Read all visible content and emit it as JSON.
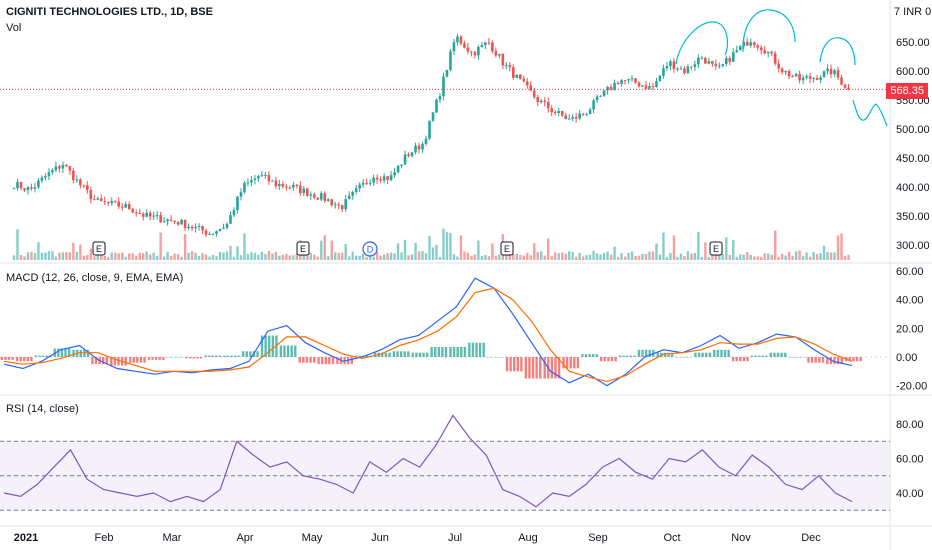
{
  "header": {
    "title": "CIGNITI TECHNOLOGIES LTD., 1D, BSE",
    "volume_label": "Vol",
    "currency_label": "7 INR 0",
    "last_price": "568.35"
  },
  "panels": {
    "macd_label": "MACD (12, 26, close, 9, EMA, EMA)",
    "rsi_label": "RSI (14, close)"
  },
  "colors": {
    "up": "#26a69a",
    "down": "#ef5350",
    "macd_line": "#2962ff",
    "signal_line": "#ff6d00",
    "rsi_line": "#7e57c2",
    "rsi_band": "#ede7f6",
    "annotation": "#00bcd4"
  },
  "chart_data": [
    {
      "type": "candlestick",
      "title": "CIGNITI TECHNOLOGIES LTD., 1D, BSE",
      "x_ticks": [
        "2021",
        "Feb",
        "Mar",
        "Apr",
        "May",
        "Jun",
        "Jul",
        "Aug",
        "Sep",
        "Oct",
        "Nov",
        "Dec"
      ],
      "y_ticks": [
        300,
        350,
        400,
        450,
        500,
        550,
        600,
        650
      ],
      "y_tick_labels": [
        "300.00",
        "350.00",
        "400.00",
        "450.00",
        "500.00",
        "550.00",
        "600.00",
        "650.00"
      ],
      "ylim": [
        280,
        700
      ],
      "last_price": 568.35,
      "earnings_markers": [
        "E",
        "E",
        "E",
        "E"
      ],
      "dividend_marker": "D",
      "close_series": [
        {
          "date": "2021-01-01",
          "close": 405
        },
        {
          "date": "2021-01-08",
          "close": 395
        },
        {
          "date": "2021-01-15",
          "close": 420
        },
        {
          "date": "2021-01-20",
          "close": 440
        },
        {
          "date": "2021-01-25",
          "close": 405
        },
        {
          "date": "2021-02-01",
          "close": 375
        },
        {
          "date": "2021-02-08",
          "close": 370
        },
        {
          "date": "2021-02-15",
          "close": 365
        },
        {
          "date": "2021-02-22",
          "close": 350
        },
        {
          "date": "2021-03-01",
          "close": 345
        },
        {
          "date": "2021-03-08",
          "close": 340
        },
        {
          "date": "2021-03-15",
          "close": 330
        },
        {
          "date": "2021-03-22",
          "close": 320
        },
        {
          "date": "2021-03-29",
          "close": 335
        },
        {
          "date": "2021-04-05",
          "close": 400
        },
        {
          "date": "2021-04-12",
          "close": 420
        },
        {
          "date": "2021-04-19",
          "close": 405
        },
        {
          "date": "2021-04-26",
          "close": 400
        },
        {
          "date": "2021-05-03",
          "close": 390
        },
        {
          "date": "2021-05-10",
          "close": 380
        },
        {
          "date": "2021-05-17",
          "close": 365
        },
        {
          "date": "2021-05-24",
          "close": 395
        },
        {
          "date": "2021-05-31",
          "close": 420
        },
        {
          "date": "2021-06-07",
          "close": 415
        },
        {
          "date": "2021-06-14",
          "close": 455
        },
        {
          "date": "2021-06-21",
          "close": 475
        },
        {
          "date": "2021-06-28",
          "close": 560
        },
        {
          "date": "2021-07-05",
          "close": 660
        },
        {
          "date": "2021-07-12",
          "close": 630
        },
        {
          "date": "2021-07-19",
          "close": 650
        },
        {
          "date": "2021-07-26",
          "close": 610
        },
        {
          "date": "2021-08-02",
          "close": 580
        },
        {
          "date": "2021-08-09",
          "close": 550
        },
        {
          "date": "2021-08-16",
          "close": 530
        },
        {
          "date": "2021-08-23",
          "close": 515
        },
        {
          "date": "2021-08-30",
          "close": 530
        },
        {
          "date": "2021-09-06",
          "close": 560
        },
        {
          "date": "2021-09-13",
          "close": 585
        },
        {
          "date": "2021-09-20",
          "close": 580
        },
        {
          "date": "2021-09-27",
          "close": 570
        },
        {
          "date": "2021-10-04",
          "close": 615
        },
        {
          "date": "2021-10-11",
          "close": 600
        },
        {
          "date": "2021-10-18",
          "close": 625
        },
        {
          "date": "2021-10-25",
          "close": 600
        },
        {
          "date": "2021-11-01",
          "close": 630
        },
        {
          "date": "2021-11-08",
          "close": 655
        },
        {
          "date": "2021-11-15",
          "close": 635
        },
        {
          "date": "2021-11-22",
          "close": 600
        },
        {
          "date": "2021-11-29",
          "close": 585
        },
        {
          "date": "2021-12-06",
          "close": 590
        },
        {
          "date": "2021-12-13",
          "close": 600
        },
        {
          "date": "2021-12-17",
          "close": 568.35
        }
      ]
    },
    {
      "type": "line",
      "title": "MACD (12, 26, close, 9, EMA, EMA)",
      "y_ticks": [
        -20,
        0,
        20,
        40,
        60
      ],
      "y_tick_labels": [
        "-20.00",
        "0.00",
        "20.00",
        "40.00",
        "60.00"
      ],
      "ylim": [
        -25,
        65
      ],
      "series": [
        {
          "name": "MACD",
          "values": [
            -5,
            -8,
            -3,
            5,
            8,
            -2,
            -8,
            -10,
            -12,
            -10,
            -11,
            -9,
            -8,
            -3,
            18,
            22,
            10,
            3,
            -3,
            0,
            5,
            12,
            15,
            25,
            35,
            55,
            48,
            30,
            10,
            -10,
            -18,
            -12,
            -20,
            -12,
            0,
            5,
            3,
            8,
            15,
            6,
            10,
            16,
            14,
            5,
            -3,
            -6
          ]
        },
        {
          "name": "Signal",
          "values": [
            -3,
            -5,
            -4,
            -1,
            3,
            3,
            -2,
            -6,
            -10,
            -10,
            -10,
            -10,
            -9,
            -7,
            3,
            14,
            14,
            8,
            2,
            -1,
            2,
            8,
            12,
            18,
            28,
            45,
            48,
            40,
            25,
            5,
            -10,
            -14,
            -17,
            -13,
            -5,
            2,
            3,
            5,
            10,
            9,
            9,
            13,
            14,
            9,
            2,
            -3
          ]
        },
        {
          "name": "Histogram",
          "values": [
            -2,
            -3,
            1,
            6,
            5,
            -5,
            -6,
            -4,
            -2,
            0,
            -1,
            1,
            1,
            4,
            15,
            8,
            -4,
            -5,
            -5,
            1,
            3,
            4,
            3,
            7,
            7,
            10,
            0,
            -10,
            -15,
            -15,
            -8,
            2,
            -3,
            1,
            5,
            3,
            0,
            3,
            5,
            -3,
            1,
            3,
            0,
            -4,
            -5,
            -3
          ]
        }
      ]
    },
    {
      "type": "line",
      "title": "RSI (14, close)",
      "y_ticks": [
        40,
        60,
        80
      ],
      "y_tick_labels": [
        "40.00",
        "60.00",
        "80.00"
      ],
      "bands": [
        30,
        50,
        70
      ],
      "ylim": [
        25,
        95
      ],
      "series": [
        {
          "name": "RSI",
          "values": [
            40,
            38,
            45,
            55,
            65,
            48,
            42,
            40,
            38,
            40,
            35,
            38,
            35,
            42,
            70,
            62,
            55,
            58,
            50,
            48,
            45,
            40,
            58,
            52,
            60,
            55,
            68,
            85,
            72,
            62,
            42,
            38,
            32,
            40,
            38,
            45,
            55,
            60,
            52,
            48,
            60,
            58,
            65,
            55,
            50,
            62,
            55,
            45,
            42,
            50,
            40,
            35
          ]
        }
      ]
    }
  ]
}
